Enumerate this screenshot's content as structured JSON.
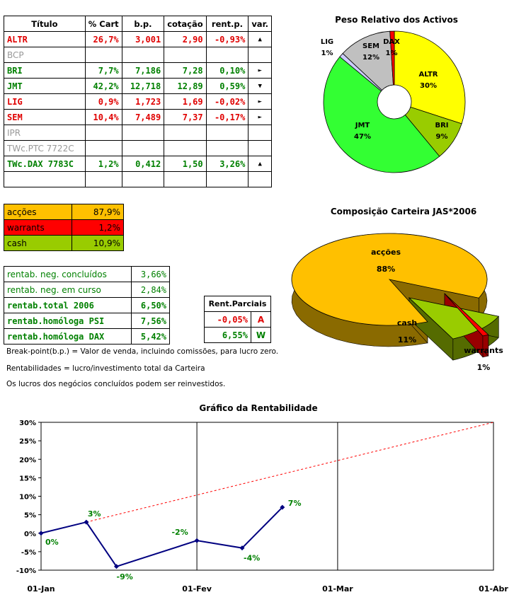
{
  "portfolio": {
    "headers": [
      "Título",
      "% Cart",
      "b.p.",
      "cotação",
      "rent.p.",
      "var."
    ],
    "rows": [
      {
        "title": "ALTR",
        "cart": "26,7%",
        "bp": "3,001",
        "cot": "2,90",
        "rent": "-0,93%",
        "var": "▲",
        "color": "red"
      },
      {
        "title": "BCP",
        "cart": "",
        "bp": "",
        "cot": "",
        "rent": "",
        "var": "",
        "color": "gray"
      },
      {
        "title": "BRI",
        "cart": "7,7%",
        "bp": "7,186",
        "cot": "7,28",
        "rent": "0,10%",
        "var": "►",
        "color": "green"
      },
      {
        "title": "JMT",
        "cart": "42,2%",
        "bp": "12,718",
        "cot": "12,89",
        "rent": "0,59%",
        "var": "▼",
        "color": "green"
      },
      {
        "title": "LIG",
        "cart": "0,9%",
        "bp": "1,723",
        "cot": "1,69",
        "rent": "-0,02%",
        "var": "►",
        "color": "red"
      },
      {
        "title": "SEM",
        "cart": "10,4%",
        "bp": "7,489",
        "cot": "7,37",
        "rent": "-0,17%",
        "var": "►",
        "color": "red"
      },
      {
        "title": "IPR",
        "cart": "",
        "bp": "",
        "cot": "",
        "rent": "",
        "var": "",
        "color": "gray"
      },
      {
        "title": "TWc.PTC 7722C",
        "cart": "",
        "bp": "",
        "cot": "",
        "rent": "",
        "var": "",
        "color": "gray"
      },
      {
        "title": "TWc.DAX 7783C",
        "cart": "1,2%",
        "bp": "0,412",
        "cot": "1,50",
        "rent": "3,26%",
        "var": "▲",
        "color": "green"
      },
      {
        "title": "",
        "cart": "",
        "bp": "",
        "cot": "",
        "rent": "",
        "var": "",
        "color": "gray"
      }
    ]
  },
  "allocation": [
    {
      "label": "acções",
      "value": "87,9%",
      "color": "#ffc000"
    },
    {
      "label": "warrants",
      "value": "1,2%",
      "color": "#ff0000"
    },
    {
      "label": "cash",
      "value": "10,9%",
      "color": "#99cc00"
    }
  ],
  "returns": [
    {
      "label": "rentab. neg. concluídos",
      "value": "3,66%",
      "bold": false
    },
    {
      "label": "rentab. neg. em curso",
      "value": "2,84%",
      "bold": false
    },
    {
      "label": "rentab.total 2006",
      "value": "6,50%",
      "bold": true
    },
    {
      "label": "rentab.homóloga PSI",
      "value": "7,56%",
      "bold": true
    },
    {
      "label": "rentab.homóloga DAX",
      "value": "5,42%",
      "bold": true
    }
  ],
  "partials": {
    "header": "Rent.Parciais",
    "rows": [
      {
        "value": "-0,05%",
        "letter": "A",
        "color": "red"
      },
      {
        "value": "6,55%",
        "letter": "W",
        "color": "green"
      }
    ]
  },
  "notes": [
    "Break-point(b.p.) = Valor de venda, incluindo comissões, para lucro zero.",
    "Rentabilidades = lucro/investimento total da Carteira",
    "Os lucros dos negócios concluídos podem ser reinvestidos."
  ],
  "chart_data": [
    {
      "type": "pie",
      "title": "Peso Relativo dos Activos",
      "slices": [
        {
          "label": "ALTR",
          "pct": "30%",
          "value": 30,
          "color": "#ffff00"
        },
        {
          "label": "BRI",
          "pct": "9%",
          "value": 9,
          "color": "#99cc00"
        },
        {
          "label": "JMT",
          "pct": "47%",
          "value": 47,
          "color": "#33ff33"
        },
        {
          "label": "LIG",
          "pct": "1%",
          "value": 1,
          "color": "#ccccff"
        },
        {
          "label": "SEM",
          "pct": "12%",
          "value": 12,
          "color": "#c0c0c0"
        },
        {
          "label": "DAX",
          "pct": "1%",
          "value": 1,
          "color": "#ff0000"
        }
      ]
    },
    {
      "type": "pie",
      "title": "Composição Carteira JAS*2006",
      "slices": [
        {
          "label": "acções",
          "pct": "88%",
          "value": 88,
          "color": "#ffc000"
        },
        {
          "label": "cash",
          "pct": "11%",
          "value": 11,
          "color": "#99cc00"
        },
        {
          "label": "warrants",
          "pct": "1%",
          "value": 1,
          "color": "#ff0000"
        }
      ]
    },
    {
      "type": "line",
      "title": "Gráfico da Rentabilidade",
      "x_ticks": [
        "01-Jan",
        "01-Fev",
        "01-Mar",
        "01-Abr"
      ],
      "y_ticks": [
        "30%",
        "25%",
        "20%",
        "15%",
        "10%",
        "5%",
        "0%",
        "-5%",
        "-10%"
      ],
      "ylim": [
        -10,
        30
      ],
      "grid": "vertical at month starts",
      "series": [
        {
          "style": "solid",
          "color": "#000080",
          "points": [
            {
              "date": "01-Jan",
              "y": 0,
              "label": "0%"
            },
            {
              "date": "10-Jan",
              "y": 3,
              "label": "3%"
            },
            {
              "date": "16-Jan",
              "y": -9,
              "label": "-9%"
            },
            {
              "date": "01-Fev",
              "y": -2,
              "label": "-2%"
            },
            {
              "date": "10-Fev",
              "y": -4,
              "label": "-4%"
            },
            {
              "date": "18-Fev",
              "y": 7,
              "label": "7%"
            }
          ]
        },
        {
          "style": "dashed",
          "color": "#ff0000",
          "points": [
            {
              "date": "01-Jan",
              "y": 0
            },
            {
              "date": "01-Abr",
              "y": 30
            }
          ]
        }
      ]
    }
  ]
}
